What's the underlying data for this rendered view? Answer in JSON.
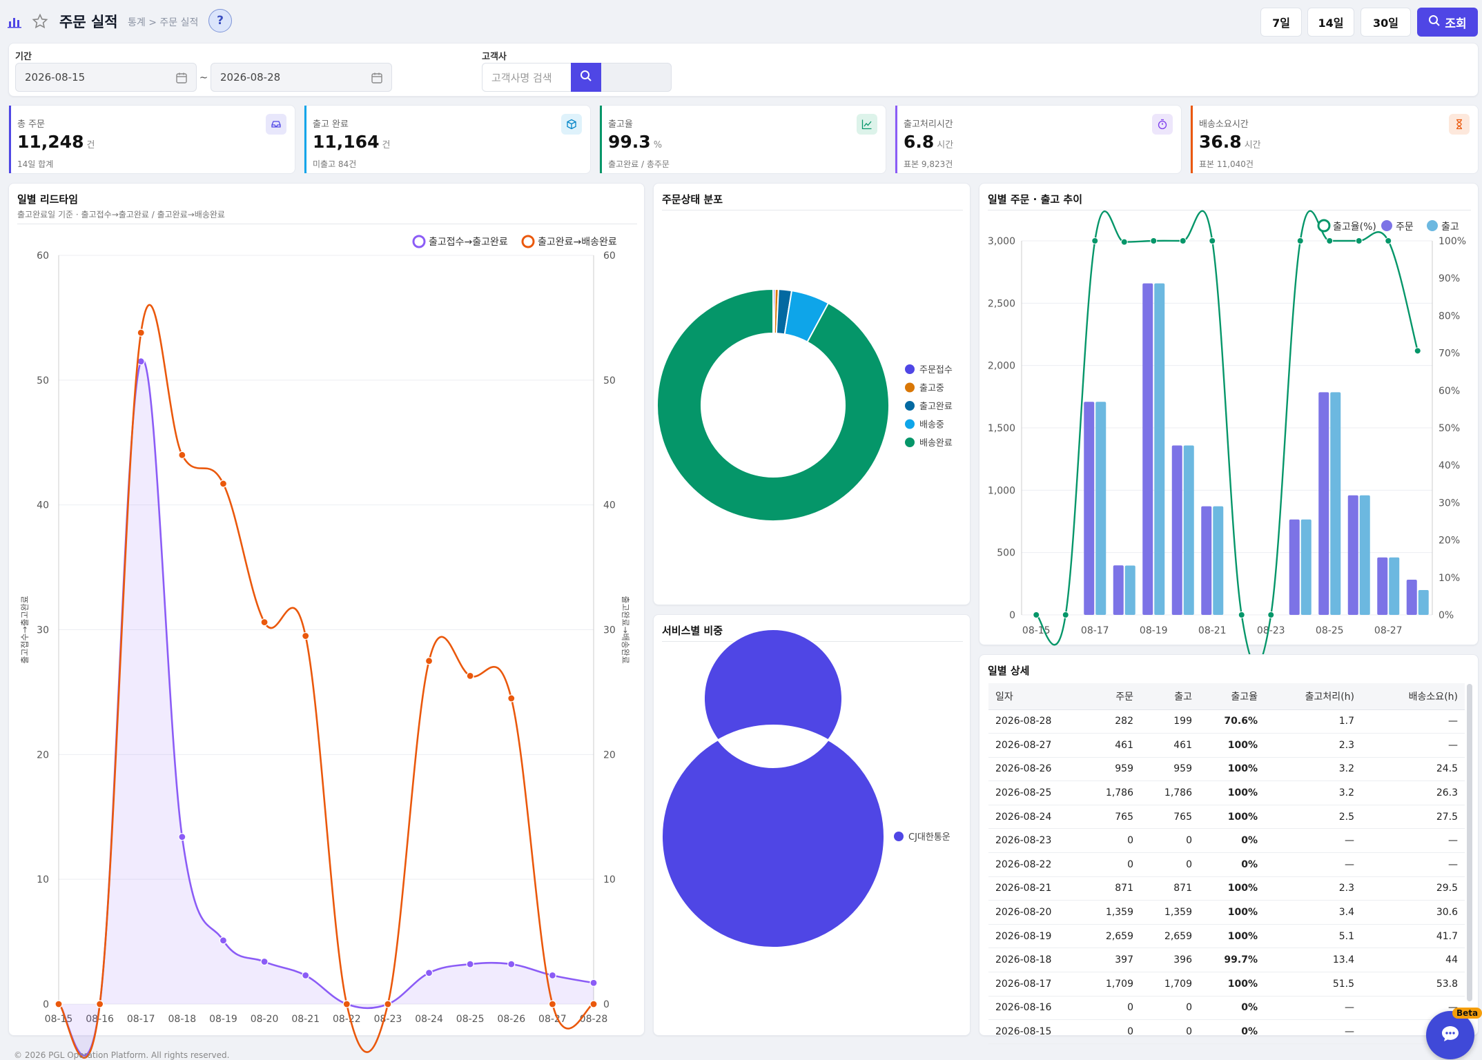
{
  "header": {
    "title": "주문 실적",
    "breadcrumb": "통계 > 주문 실적",
    "help": "?",
    "range_buttons": [
      "7일",
      "14일",
      "30일"
    ],
    "search_label": "조회"
  },
  "filter": {
    "period_label": "기간",
    "start_date": "2026-08-15",
    "tilde": "~",
    "end_date": "2026-08-28",
    "customer_label": "고객사",
    "customer_placeholder": "고객사명 검색"
  },
  "kpis": [
    {
      "label": "총 주문",
      "value": "11,248",
      "unit": "건",
      "sub": "14일 합계",
      "color": "#4f46e5"
    },
    {
      "label": "출고 완료",
      "value": "11,164",
      "unit": "건",
      "sub": "미출고 84건",
      "color": "#0ea5e9"
    },
    {
      "label": "출고율",
      "value": "99.3",
      "unit": "%",
      "sub": "출고완료 / 총주문",
      "color": "#059669"
    },
    {
      "label": "출고처리시간",
      "value": "6.8",
      "unit": "시간",
      "sub": "표본 9,823건",
      "color": "#8b5cf6"
    },
    {
      "label": "배송소요시간",
      "value": "36.8",
      "unit": "시간",
      "sub": "표본 11,040건",
      "color": "#ea580c"
    }
  ],
  "lead_time": {
    "title": "일별 리드타임",
    "subtitle": "출고완료일 기준 · 출고접수→출고완료 / 출고완료→배송완료"
  },
  "status_dist": {
    "title": "주문상태 분포"
  },
  "service_share": {
    "title": "서비스별 비중"
  },
  "trend": {
    "title": "일별 주문 · 출고 추이"
  },
  "detail": {
    "title": "일별 상세",
    "columns": [
      "일자",
      "주문",
      "출고",
      "출고율",
      "출고처리(h)",
      "배송소요(h)"
    ],
    "rows": [
      [
        "2026-08-28",
        "282",
        "199",
        "70.6%",
        "1.7",
        "—"
      ],
      [
        "2026-08-27",
        "461",
        "461",
        "100%",
        "2.3",
        "—"
      ],
      [
        "2026-08-26",
        "959",
        "959",
        "100%",
        "3.2",
        "24.5"
      ],
      [
        "2026-08-25",
        "1,786",
        "1,786",
        "100%",
        "3.2",
        "26.3"
      ],
      [
        "2026-08-24",
        "765",
        "765",
        "100%",
        "2.5",
        "27.5"
      ],
      [
        "2026-08-23",
        "0",
        "0",
        "0%",
        "—",
        "—"
      ],
      [
        "2026-08-22",
        "0",
        "0",
        "0%",
        "—",
        "—"
      ],
      [
        "2026-08-21",
        "871",
        "871",
        "100%",
        "2.3",
        "29.5"
      ],
      [
        "2026-08-20",
        "1,359",
        "1,359",
        "100%",
        "3.4",
        "30.6"
      ],
      [
        "2026-08-19",
        "2,659",
        "2,659",
        "100%",
        "5.1",
        "41.7"
      ],
      [
        "2026-08-18",
        "397",
        "396",
        "99.7%",
        "13.4",
        "44"
      ],
      [
        "2026-08-17",
        "1,709",
        "1,709",
        "100%",
        "51.5",
        "53.8"
      ],
      [
        "2026-08-16",
        "0",
        "0",
        "0%",
        "—",
        "—"
      ],
      [
        "2026-08-15",
        "0",
        "0",
        "0%",
        "—",
        "—"
      ]
    ]
  },
  "chat": {
    "beta": "Beta"
  },
  "footer": "© 2026 PGL Operation Platform. All rights reserved.",
  "chart_data": [
    {
      "type": "line",
      "title": "일별 리드타임",
      "x": [
        "08-15",
        "08-16",
        "08-17",
        "08-18",
        "08-19",
        "08-20",
        "08-21",
        "08-22",
        "08-23",
        "08-24",
        "08-25",
        "08-26",
        "08-27",
        "08-28"
      ],
      "ylim": [
        0,
        60
      ],
      "y2lim": [
        0,
        60
      ],
      "ylabel": "출고접수→출고완료",
      "y2label": "출고완료→배송완료",
      "legend": "top-right",
      "series": [
        {
          "name": "출고접수→출고완료",
          "axis": "left",
          "color": "#8b5cf6",
          "values": [
            0,
            0,
            51.5,
            13.4,
            5.1,
            3.4,
            2.3,
            0,
            0,
            2.5,
            3.2,
            3.2,
            2.3,
            1.7
          ]
        },
        {
          "name": "출고완료→배송완료",
          "axis": "right",
          "color": "#ea580c",
          "values": [
            0,
            0,
            53.8,
            44,
            41.7,
            30.6,
            29.5,
            0,
            0,
            27.5,
            26.3,
            24.5,
            0,
            0
          ]
        }
      ]
    },
    {
      "type": "pie",
      "title": "주문상태 분포",
      "legend": "right",
      "labels": [
        "주문접수",
        "출고중",
        "출고완료",
        "배송중",
        "배송완료"
      ],
      "values": [
        30,
        54,
        205,
        600,
        10359
      ],
      "colors": [
        "#4f46e5",
        "#d97706",
        "#0369a1",
        "#0ea5e9",
        "#059669"
      ]
    },
    {
      "type": "pie",
      "title": "서비스별 비중",
      "legend": "right",
      "labels": [
        "CJ대한통운"
      ],
      "values": [
        11248
      ],
      "colors": [
        "#4f46e5"
      ]
    },
    {
      "type": "bar",
      "title": "일별 주문 · 출고 추이",
      "categories": [
        "08-15",
        "08-16",
        "08-17",
        "08-18",
        "08-19",
        "08-20",
        "08-21",
        "08-22",
        "08-23",
        "08-24",
        "08-25",
        "08-26",
        "08-27",
        "08-28"
      ],
      "xtick_labels": [
        "08-15",
        "08-17",
        "08-19",
        "08-21",
        "08-23",
        "08-25",
        "08-27"
      ],
      "ylim": [
        0,
        3000
      ],
      "y2lim": [
        0,
        100
      ],
      "legend": "top-right",
      "series": [
        {
          "name": "출고율(%)",
          "type": "line",
          "axis": "right",
          "color": "#059669",
          "values": [
            0,
            0,
            100,
            99.7,
            100,
            100,
            100,
            0,
            0,
            100,
            100,
            100,
            100,
            70.6
          ]
        },
        {
          "name": "주문",
          "type": "bar",
          "axis": "left",
          "color": "#7c73e6",
          "values": [
            0,
            0,
            1709,
            397,
            2659,
            1359,
            871,
            0,
            0,
            765,
            1786,
            959,
            461,
            282
          ]
        },
        {
          "name": "출고",
          "type": "bar",
          "axis": "left",
          "color": "#6cb8e0",
          "values": [
            0,
            0,
            1709,
            396,
            2659,
            1359,
            871,
            0,
            0,
            765,
            1786,
            959,
            461,
            199
          ]
        }
      ]
    }
  ]
}
